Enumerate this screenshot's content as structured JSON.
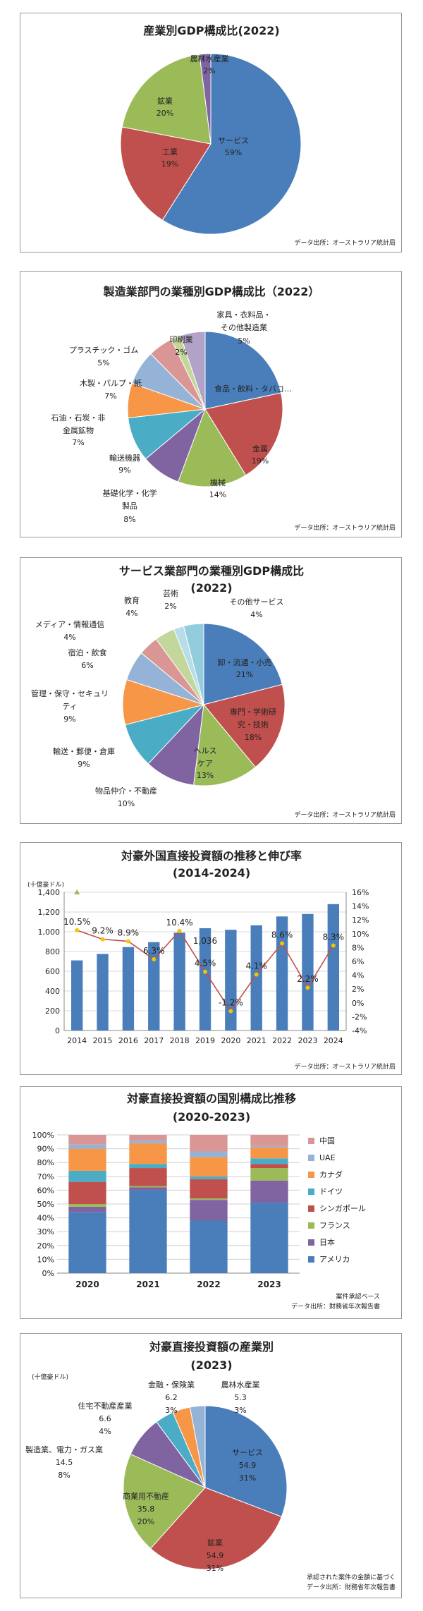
{
  "chart_data": [
    {
      "type": "pie",
      "title": "産業別GDP構成比(2022)",
      "labels": [
        "サービス",
        "工業",
        "鉱業",
        "農林水産業"
      ],
      "values": [
        59,
        19,
        20,
        2
      ],
      "value_labels": [
        "59%",
        "19%",
        "20%",
        "2%"
      ],
      "colors": [
        "#4a7ebb",
        "#c0504d",
        "#9bbb59",
        "#8064a2"
      ],
      "source": "データ出所：オーストラリア統計局"
    },
    {
      "type": "pie",
      "title": "製造業部門の業種別GDP構成比（2022）",
      "labels": [
        "食品・飲料・タバコ…",
        "金属",
        "機械",
        "基礎化学・化学製品",
        "輸送機器",
        "石油・石炭・非金属鉱物",
        "木製・パルプ・紙",
        "プラスチック・ゴム",
        "印刷業",
        "家具・衣料品・その他製造業"
      ],
      "values": [
        21,
        19,
        14,
        8,
        9,
        7,
        7,
        5,
        2,
        5
      ],
      "value_labels": [
        "",
        "19%",
        "14%",
        "8%",
        "9%",
        "7%",
        "7%",
        "5%",
        "2%",
        "5%"
      ],
      "colors": [
        "#4a7ebb",
        "#c0504d",
        "#9bbb59",
        "#8064a2",
        "#4bacc6",
        "#f79646",
        "#95b3d7",
        "#da9694",
        "#c3d69b",
        "#b3a2c7"
      ],
      "source": "データ出所：オーストラリア統計局"
    },
    {
      "type": "pie",
      "title": "サービス業部門の業種別GDP構成比",
      "subtitle": "(2022)",
      "labels": [
        "卸・流通・小売",
        "専門・学術研究・技術",
        "ヘルスケア",
        "物品仲介・不動産",
        "輸送・郵便・倉庫",
        "管理・保守・セキュリティ",
        "宿泊・飲食",
        "メディア・情報通信",
        "教育",
        "芸術",
        "その他サービス"
      ],
      "values": [
        21,
        18,
        13,
        10,
        9,
        9,
        6,
        4,
        4,
        2,
        4
      ],
      "value_labels": [
        "21%",
        "18%",
        "13%",
        "10%",
        "9%",
        "9%",
        "6%",
        "4%",
        "4%",
        "2%",
        "4%"
      ],
      "colors": [
        "#4a7ebb",
        "#c0504d",
        "#9bbb59",
        "#8064a2",
        "#4bacc6",
        "#f79646",
        "#95b3d7",
        "#da9694",
        "#c3d69b",
        "#b7dee8",
        "#93cddd"
      ],
      "source": "データ出所：オーストラリア統計局"
    },
    {
      "type": "bar",
      "title": "対豪外国直接投資額の推移と伸び率",
      "subtitle": "(2014-2024)",
      "unit_label": "(十億豪ドル)",
      "categories": [
        "2014",
        "2015",
        "2016",
        "2017",
        "2018",
        "2019",
        "2020",
        "2021",
        "2022",
        "2023",
        "2024"
      ],
      "values": [
        710,
        775,
        845,
        895,
        990,
        1036,
        1020,
        1065,
        1155,
        1180,
        1280
      ],
      "growth": [
        10.5,
        9.2,
        8.9,
        6.3,
        10.4,
        4.5,
        -1.2,
        4.1,
        8.6,
        2.2,
        8.3
      ],
      "growth_labels": [
        "10.5%",
        "9.2%",
        "8.9%",
        "6.3%",
        "10.4%",
        "4.5%",
        "-1.2%",
        "4.1%",
        "8.6%",
        "2.2%",
        "8.3%"
      ],
      "bar_annotation": "1,036",
      "ylim": [
        0,
        1400
      ],
      "y2lim": [
        -4,
        16
      ],
      "yticks": [
        "0",
        "200",
        "400",
        "600",
        "800",
        "1,000",
        "1,200",
        "1,400"
      ],
      "y2ticks": [
        "-4%",
        "-2%",
        "0%",
        "2%",
        "4%",
        "6%",
        "8%",
        "10%",
        "12%",
        "14%",
        "16%"
      ],
      "bar_color": "#4a7ebb",
      "line_color": "#c0504d",
      "source": "データ出所：オーストラリア統計局"
    },
    {
      "type": "bar",
      "stacked": true,
      "title": "対豪直接投資額の国別構成比推移",
      "subtitle": "(2020-2023)",
      "categories": [
        "2020",
        "2021",
        "2022",
        "2023"
      ],
      "series": [
        {
          "name": "アメリカ",
          "color": "#4a7ebb",
          "values": [
            44,
            60,
            38,
            51
          ]
        },
        {
          "name": "日本",
          "color": "#8064a2",
          "values": [
            4,
            2,
            15,
            16
          ]
        },
        {
          "name": "フランス",
          "color": "#9bbb59",
          "values": [
            2,
            1,
            1,
            9
          ]
        },
        {
          "name": "シンガポール",
          "color": "#c0504d",
          "values": [
            16,
            13,
            14,
            3
          ]
        },
        {
          "name": "ドイツ",
          "color": "#4bacc6",
          "values": [
            8,
            3,
            2,
            4
          ]
        },
        {
          "name": "カナダ",
          "color": "#f79646",
          "values": [
            16,
            15,
            14,
            8
          ]
        },
        {
          "name": "UAE",
          "color": "#95b3d7",
          "values": [
            3,
            2,
            4,
            1
          ]
        },
        {
          "name": "中国",
          "color": "#da9694",
          "values": [
            7,
            4,
            12,
            8
          ]
        }
      ],
      "yticks": [
        "0%",
        "10%",
        "20%",
        "30%",
        "40%",
        "50%",
        "60%",
        "70%",
        "80%",
        "90%",
        "100%"
      ],
      "ylim": [
        0,
        100
      ],
      "note": "案件承認ベース",
      "source": "データ出所：財務省年次報告書"
    },
    {
      "type": "pie",
      "title": "対豪直接投資額の産業別",
      "subtitle": "(2023)",
      "unit_label": "(十億豪ドル)",
      "labels": [
        "サービス",
        "鉱業",
        "商業用不動産",
        "製造業、電力・ガス業",
        "住宅不動産産業",
        "金融・保険業",
        "農林水産業"
      ],
      "values": [
        54.9,
        54.9,
        35.8,
        14.5,
        6.6,
        6.2,
        5.3
      ],
      "value_labels": [
        "54.9",
        "54.9",
        "35.8",
        "14.5",
        "6.6",
        "6.2",
        "5.3"
      ],
      "pct_labels": [
        "31%",
        "31%",
        "20%",
        "8%",
        "4%",
        "3%",
        "3%"
      ],
      "colors": [
        "#4a7ebb",
        "#c0504d",
        "#9bbb59",
        "#8064a2",
        "#4bacc6",
        "#f79646",
        "#95b3d7"
      ],
      "note": "承認された案件の金額に基づく",
      "source": "データ出所：財務省年次報告書"
    }
  ]
}
